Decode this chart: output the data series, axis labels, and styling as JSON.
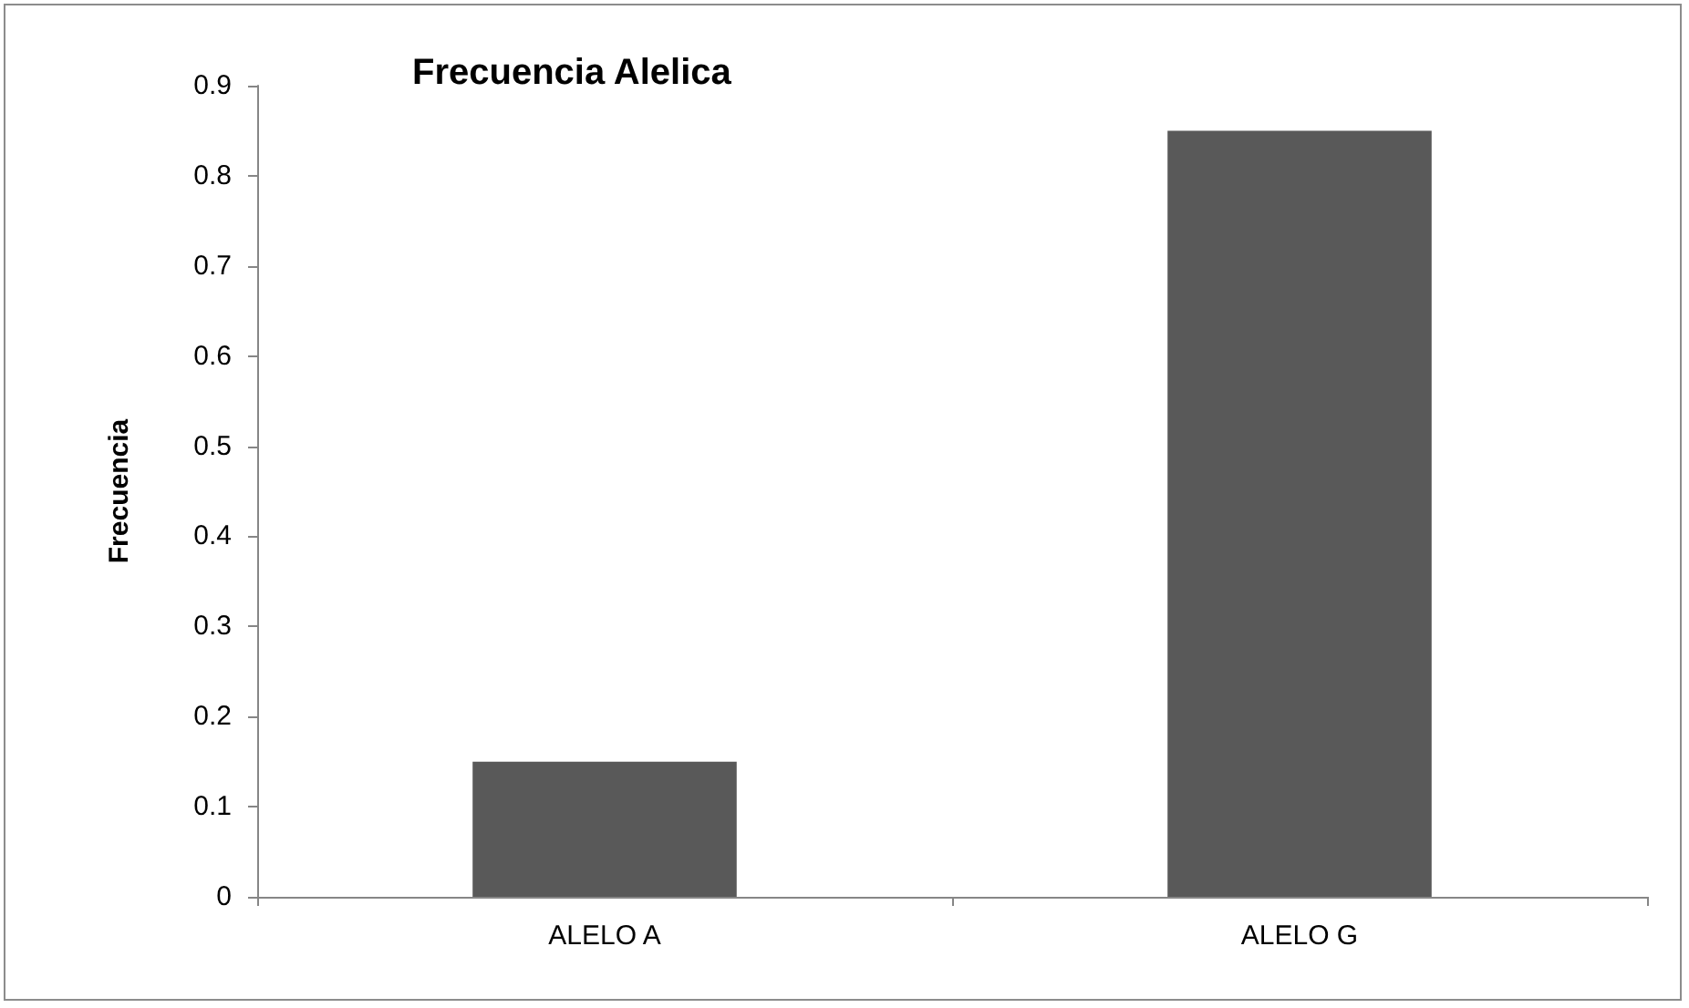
{
  "chart_data": {
    "type": "bar",
    "title": "Frecuencia Alelica",
    "ylabel": "Frecuencia",
    "categories": [
      "ALELO A",
      "ALELO G"
    ],
    "values": [
      0.15,
      0.85
    ],
    "color": "#595959",
    "ylim": [
      0,
      0.9
    ],
    "yticks": [
      0,
      0.1,
      0.2,
      0.3,
      0.4,
      0.5,
      0.6,
      0.7,
      0.8,
      0.9
    ],
    "grid": false
  }
}
